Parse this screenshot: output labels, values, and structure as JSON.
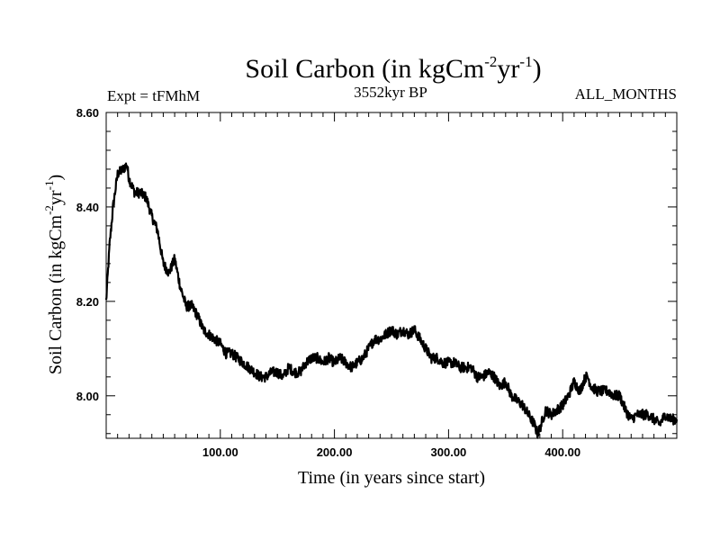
{
  "chart_data": {
    "type": "line",
    "title": {
      "main": "Soil Carbon (in kgCm",
      "sup1": "-2",
      "mid": "yr",
      "sup2": "-1",
      "end": ")"
    },
    "header_left": "Expt = tFMhM",
    "header_center": "3552kyr BP",
    "header_right": "ALL_MONTHS",
    "xlabel": "Time (in years since start)",
    "ylabel": {
      "main": "Soil Carbon (in kgCm",
      "sup1": "-2",
      "mid": "yr",
      "sup2": "-1",
      "end": ")"
    },
    "xlim": [
      0,
      500
    ],
    "ylim": [
      7.91,
      8.6
    ],
    "x_ticks": [
      100,
      200,
      300,
      400
    ],
    "x_tick_labels": [
      "100.00",
      "200.00",
      "300.00",
      "400.00"
    ],
    "y_ticks": [
      8.0,
      8.2,
      8.4,
      8.6
    ],
    "y_tick_labels": [
      "8.00",
      "8.20",
      "8.40",
      "8.60"
    ],
    "line_color": "#000000",
    "series": [
      {
        "x": [
          0,
          3,
          6,
          10,
          15,
          18,
          20,
          25,
          30,
          35,
          40,
          45,
          50,
          55,
          60,
          65,
          70,
          75,
          80,
          85,
          90,
          95,
          100,
          105,
          110,
          115,
          120,
          125,
          130,
          135,
          140,
          145,
          150,
          155,
          160,
          165,
          170,
          175,
          180,
          185,
          190,
          195,
          200,
          205,
          210,
          215,
          220,
          225,
          230,
          235,
          240,
          245,
          250,
          255,
          260,
          265,
          270,
          275,
          280,
          285,
          290,
          295,
          300,
          305,
          310,
          315,
          320,
          325,
          330,
          335,
          340,
          345,
          350,
          355,
          360,
          365,
          370,
          375,
          378,
          380,
          385,
          390,
          395,
          400,
          405,
          410,
          415,
          420,
          422,
          425,
          430,
          435,
          440,
          445,
          450,
          455,
          460,
          465,
          470,
          475,
          480,
          485,
          490,
          495,
          500
        ],
        "y": [
          8.2,
          8.32,
          8.4,
          8.47,
          8.48,
          8.49,
          8.46,
          8.43,
          8.43,
          8.42,
          8.38,
          8.35,
          8.28,
          8.26,
          8.29,
          8.23,
          8.19,
          8.19,
          8.17,
          8.14,
          8.13,
          8.12,
          8.11,
          8.09,
          8.09,
          8.08,
          8.07,
          8.06,
          8.05,
          8.04,
          8.04,
          8.05,
          8.05,
          8.04,
          8.06,
          8.05,
          8.05,
          8.07,
          8.08,
          8.08,
          8.07,
          8.08,
          8.07,
          8.08,
          8.07,
          8.06,
          8.07,
          8.08,
          8.1,
          8.12,
          8.12,
          8.13,
          8.14,
          8.13,
          8.14,
          8.13,
          8.14,
          8.12,
          8.1,
          8.08,
          8.08,
          8.07,
          8.07,
          8.07,
          8.06,
          8.06,
          8.06,
          8.04,
          8.04,
          8.05,
          8.04,
          8.02,
          8.03,
          8.0,
          7.99,
          7.98,
          7.96,
          7.94,
          7.92,
          7.93,
          7.97,
          7.96,
          7.97,
          7.98,
          8.0,
          8.03,
          8.01,
          8.04,
          8.04,
          8.02,
          8.01,
          8.01,
          8.01,
          8.0,
          8.0,
          7.97,
          7.95,
          7.96,
          7.96,
          7.96,
          7.95,
          7.94,
          7.96,
          7.95,
          7.95
        ]
      }
    ]
  }
}
